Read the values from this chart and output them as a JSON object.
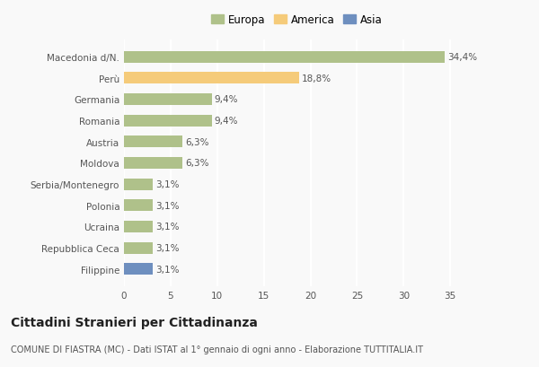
{
  "categories": [
    "Filippine",
    "Repubblica Ceca",
    "Ucraina",
    "Polonia",
    "Serbia/Montenegro",
    "Moldova",
    "Austria",
    "Romania",
    "Germania",
    "Perù",
    "Macedonia d/N."
  ],
  "values": [
    3.1,
    3.1,
    3.1,
    3.1,
    3.1,
    6.3,
    6.3,
    9.4,
    9.4,
    18.8,
    34.4
  ],
  "labels": [
    "3,1%",
    "3,1%",
    "3,1%",
    "3,1%",
    "3,1%",
    "6,3%",
    "6,3%",
    "9,4%",
    "9,4%",
    "18,8%",
    "34,4%"
  ],
  "colors": [
    "#6e8fbf",
    "#afc18a",
    "#afc18a",
    "#afc18a",
    "#afc18a",
    "#afc18a",
    "#afc18a",
    "#afc18a",
    "#afc18a",
    "#f5cb7a",
    "#afc18a"
  ],
  "legend": [
    {
      "label": "Europa",
      "color": "#afc18a"
    },
    {
      "label": "America",
      "color": "#f5cb7a"
    },
    {
      "label": "Asia",
      "color": "#6e8fbf"
    }
  ],
  "xlim": [
    0,
    37
  ],
  "xticks": [
    0,
    5,
    10,
    15,
    20,
    25,
    30,
    35
  ],
  "title_bold": "Cittadini Stranieri per Cittadinanza",
  "subtitle": "COMUNE DI FIASTRA (MC) - Dati ISTAT al 1° gennaio di ogni anno - Elaborazione TUTTITALIA.IT",
  "background_color": "#f9f9f9",
  "grid_color": "#ffffff",
  "bar_height": 0.55,
  "label_fontsize": 7.5,
  "tick_fontsize": 7.5,
  "title_fontsize": 10,
  "subtitle_fontsize": 7
}
